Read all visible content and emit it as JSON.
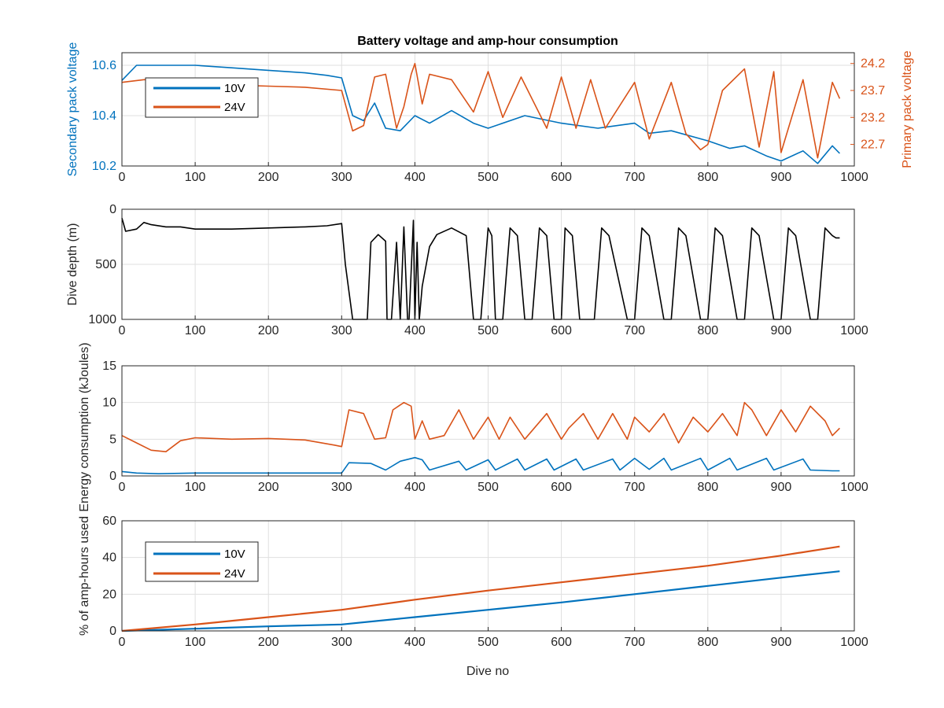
{
  "figure": {
    "title": "Battery voltage and amp-hour consumption",
    "xlabel": "Dive no"
  },
  "colors": {
    "v10": "#0072bd",
    "v24": "#d95319",
    "depth": "#000000"
  },
  "chart_data": [
    {
      "type": "line",
      "title": "Battery voltage and amp-hour consumption",
      "xlim": [
        0,
        1000
      ],
      "xticks": [
        "0",
        "100",
        "200",
        "300",
        "400",
        "500",
        "600",
        "700",
        "800",
        "900",
        "1000"
      ],
      "ylabel": "Secondary pack voltage",
      "ylim": [
        10.2,
        10.65
      ],
      "yticks": [
        "10.2",
        "10.4",
        "10.6"
      ],
      "ylabel_right": "Primary pack voltage",
      "ylim_right": [
        22.3,
        24.4
      ],
      "yticks_right": [
        "22.7",
        "23.2",
        "23.7",
        "24.2"
      ],
      "grid": true,
      "legend": {
        "location": "top-left",
        "entries": [
          "10V",
          "24V"
        ]
      },
      "series": [
        {
          "name": "10V",
          "axis": "left",
          "x": [
            0,
            20,
            50,
            100,
            150,
            200,
            250,
            280,
            300,
            315,
            330,
            345,
            360,
            380,
            400,
            420,
            450,
            480,
            500,
            550,
            600,
            650,
            700,
            720,
            750,
            800,
            830,
            850,
            880,
            900,
            930,
            950,
            970,
            980
          ],
          "y": [
            10.54,
            10.6,
            10.6,
            10.6,
            10.59,
            10.58,
            10.57,
            10.56,
            10.55,
            10.4,
            10.38,
            10.45,
            10.35,
            10.34,
            10.4,
            10.37,
            10.42,
            10.37,
            10.35,
            10.4,
            10.37,
            10.35,
            10.37,
            10.33,
            10.34,
            10.3,
            10.27,
            10.28,
            10.24,
            10.22,
            10.26,
            10.21,
            10.28,
            10.25
          ]
        },
        {
          "name": "24V",
          "axis": "right",
          "x": [
            0,
            30,
            60,
            90,
            120,
            150,
            200,
            250,
            300,
            315,
            330,
            345,
            360,
            375,
            385,
            395,
            400,
            410,
            420,
            450,
            480,
            500,
            520,
            545,
            580,
            600,
            620,
            640,
            660,
            700,
            720,
            750,
            770,
            790,
            800,
            820,
            850,
            870,
            890,
            900,
            930,
            950,
            970,
            980
          ],
          "y": [
            23.85,
            23.9,
            23.9,
            23.85,
            23.82,
            23.8,
            23.78,
            23.76,
            23.7,
            22.95,
            23.05,
            23.95,
            24.0,
            23.0,
            23.4,
            24.0,
            24.2,
            23.45,
            24.0,
            23.9,
            23.3,
            24.05,
            23.2,
            23.95,
            23.0,
            23.95,
            23.0,
            23.9,
            23.0,
            23.85,
            22.8,
            23.85,
            22.9,
            22.6,
            22.7,
            23.7,
            24.1,
            22.65,
            24.05,
            22.55,
            23.9,
            22.45,
            23.85,
            23.55
          ]
        }
      ]
    },
    {
      "type": "line",
      "xlim": [
        0,
        1000
      ],
      "xticks": [
        "0",
        "100",
        "200",
        "300",
        "400",
        "500",
        "600",
        "700",
        "800",
        "900",
        "1000"
      ],
      "ylabel": "Dive depth (m)",
      "ylim": [
        0,
        1000
      ],
      "yreversed": true,
      "yticks": [
        "0",
        "500",
        "1000"
      ],
      "grid": true,
      "series": [
        {
          "x": [
            0,
            5,
            20,
            30,
            40,
            60,
            80,
            100,
            150,
            200,
            250,
            280,
            300,
            305,
            315,
            320,
            335,
            340,
            350,
            360,
            362,
            368,
            375,
            380,
            385,
            390,
            392,
            398,
            400,
            403,
            406,
            410,
            420,
            430,
            450,
            470,
            480,
            490,
            500,
            505,
            510,
            520,
            530,
            540,
            550,
            560,
            570,
            580,
            590,
            600,
            605,
            615,
            625,
            645,
            655,
            665,
            690,
            700,
            710,
            720,
            740,
            750,
            760,
            770,
            790,
            800,
            810,
            820,
            840,
            850,
            860,
            870,
            890,
            900,
            910,
            920,
            940,
            950,
            960,
            970,
            975,
            980
          ],
          "y": [
            80,
            200,
            180,
            120,
            140,
            160,
            160,
            180,
            180,
            170,
            160,
            150,
            130,
            500,
            1000,
            1000,
            1000,
            300,
            230,
            290,
            1000,
            1000,
            300,
            1000,
            160,
            1000,
            1000,
            100,
            1000,
            300,
            1000,
            700,
            340,
            230,
            170,
            240,
            1000,
            1000,
            170,
            240,
            1000,
            1000,
            170,
            240,
            1000,
            1000,
            170,
            240,
            1000,
            1000,
            170,
            240,
            1000,
            1000,
            170,
            240,
            1000,
            1000,
            170,
            240,
            1000,
            1000,
            170,
            240,
            1000,
            1000,
            170,
            240,
            1000,
            1000,
            170,
            240,
            1000,
            1000,
            170,
            240,
            1000,
            1000,
            170,
            240,
            260,
            260
          ]
        }
      ]
    },
    {
      "type": "line",
      "xlim": [
        0,
        1000
      ],
      "xticks": [
        "0",
        "100",
        "200",
        "300",
        "400",
        "500",
        "600",
        "700",
        "800",
        "900",
        "1000"
      ],
      "ylabel": "Energy consumption (kJoules)",
      "ylim": [
        0,
        15
      ],
      "yticks": [
        "0",
        "5",
        "10",
        "15"
      ],
      "grid": true,
      "series": [
        {
          "name": "10V",
          "x": [
            0,
            20,
            50,
            100,
            150,
            200,
            250,
            300,
            310,
            340,
            360,
            380,
            400,
            410,
            420,
            460,
            470,
            500,
            510,
            540,
            550,
            580,
            590,
            620,
            630,
            670,
            680,
            700,
            720,
            740,
            750,
            790,
            800,
            830,
            840,
            880,
            890,
            930,
            940,
            970,
            980
          ],
          "y": [
            0.6,
            0.4,
            0.3,
            0.4,
            0.4,
            0.4,
            0.4,
            0.4,
            1.8,
            1.7,
            0.8,
            2.0,
            2.5,
            2.2,
            0.8,
            2.0,
            0.8,
            2.2,
            0.8,
            2.3,
            0.8,
            2.3,
            0.8,
            2.3,
            0.8,
            2.3,
            0.8,
            2.4,
            0.9,
            2.4,
            0.8,
            2.4,
            0.8,
            2.4,
            0.8,
            2.4,
            0.8,
            2.3,
            0.8,
            0.7,
            0.7
          ]
        },
        {
          "name": "24V",
          "x": [
            0,
            20,
            40,
            60,
            80,
            100,
            150,
            200,
            250,
            290,
            300,
            310,
            330,
            345,
            360,
            370,
            385,
            395,
            400,
            410,
            420,
            440,
            460,
            480,
            500,
            515,
            530,
            550,
            580,
            600,
            610,
            630,
            650,
            670,
            690,
            700,
            720,
            740,
            760,
            780,
            800,
            820,
            840,
            850,
            860,
            880,
            900,
            920,
            940,
            960,
            970,
            980
          ],
          "y": [
            5.5,
            4.5,
            3.5,
            3.3,
            4.8,
            5.2,
            5.0,
            5.1,
            4.9,
            4.2,
            4.0,
            9.0,
            8.5,
            5.0,
            5.2,
            9.0,
            10.0,
            9.5,
            5.0,
            7.5,
            5.0,
            5.5,
            9.0,
            5.0,
            8.0,
            5.0,
            8.0,
            5.0,
            8.5,
            5.0,
            6.5,
            8.5,
            5.0,
            8.5,
            5.0,
            8.0,
            6.0,
            8.5,
            4.5,
            8.0,
            6.0,
            8.5,
            5.5,
            10.0,
            9.0,
            5.5,
            9.0,
            6.0,
            9.5,
            7.5,
            5.5,
            6.5
          ]
        }
      ]
    },
    {
      "type": "line",
      "xlim": [
        0,
        1000
      ],
      "xticks": [
        "0",
        "100",
        "200",
        "300",
        "400",
        "500",
        "600",
        "700",
        "800",
        "900",
        "1000"
      ],
      "xlabel": "Dive no",
      "ylabel": "% of amp-hours used",
      "ylim": [
        0,
        60
      ],
      "yticks": [
        "0",
        "20",
        "40",
        "60"
      ],
      "grid": true,
      "legend": {
        "location": "top-left",
        "entries": [
          "10V",
          "24V"
        ]
      },
      "series": [
        {
          "name": "10V",
          "x": [
            0,
            100,
            200,
            300,
            400,
            500,
            600,
            700,
            800,
            900,
            980
          ],
          "y": [
            0,
            1.2,
            2.5,
            3.5,
            7.5,
            11.5,
            15.5,
            20.0,
            24.5,
            29.0,
            32.5
          ]
        },
        {
          "name": "24V",
          "x": [
            0,
            100,
            200,
            300,
            400,
            500,
            600,
            700,
            800,
            900,
            980
          ],
          "y": [
            0,
            3.5,
            7.5,
            11.5,
            17.0,
            22.0,
            26.5,
            31.0,
            35.5,
            41.0,
            46.0
          ]
        }
      ]
    }
  ]
}
